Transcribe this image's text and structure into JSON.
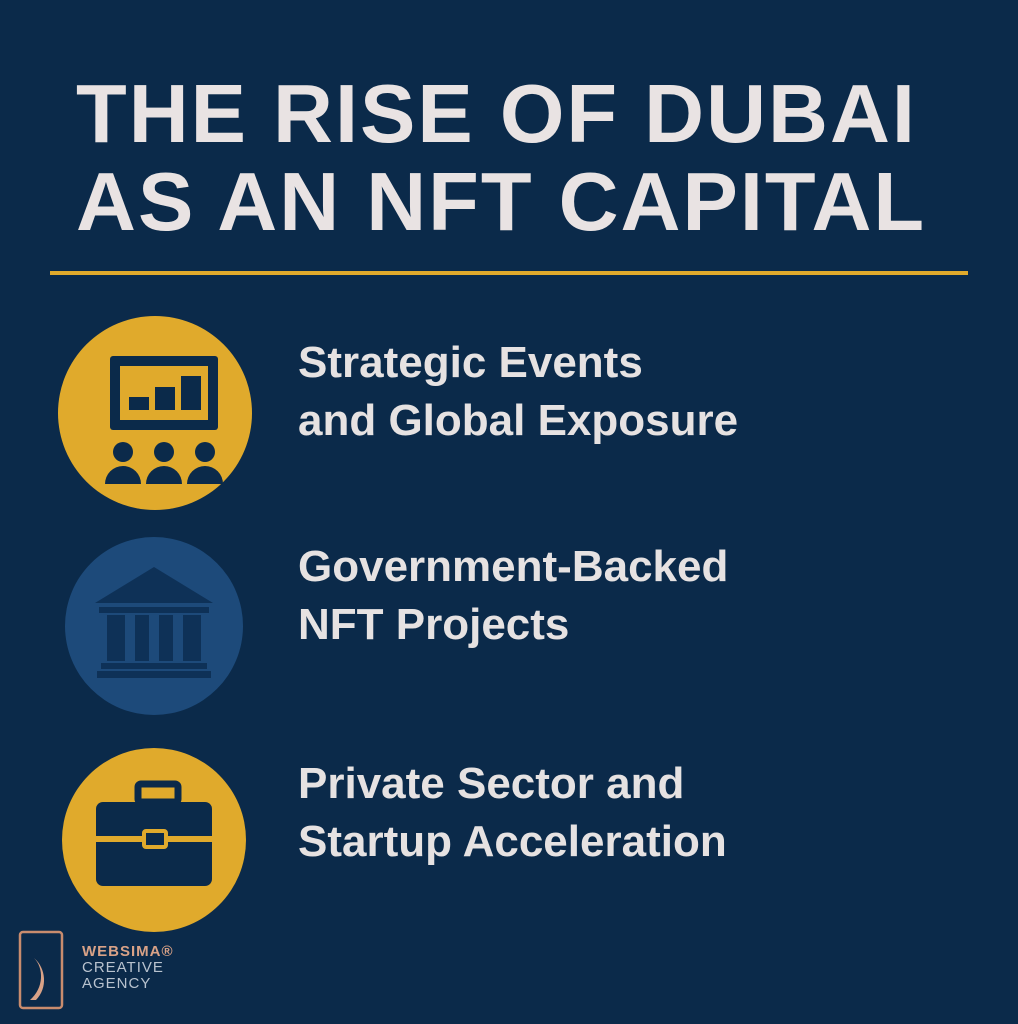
{
  "title": {
    "line1": "THE RISE OF DUBAI",
    "line2": "AS AN NFT CAPITAL"
  },
  "colors": {
    "background": "#0b2a4a",
    "accent_gold": "#e0aa2c",
    "accent_blue": "#1d4a7a",
    "text": "#e6e2e2"
  },
  "items": [
    {
      "icon": "presentation-audience-icon",
      "line1": "Strategic Events",
      "line2": "and Global Exposure"
    },
    {
      "icon": "government-building-icon",
      "line1": "Government-Backed",
      "line2": "NFT Projects"
    },
    {
      "icon": "briefcase-icon",
      "line1": "Private Sector and",
      "line2": "Startup Acceleration"
    }
  ],
  "brand": {
    "name": "WEBSIMA®",
    "line2": "CREATIVE",
    "line3": "AGENCY"
  }
}
